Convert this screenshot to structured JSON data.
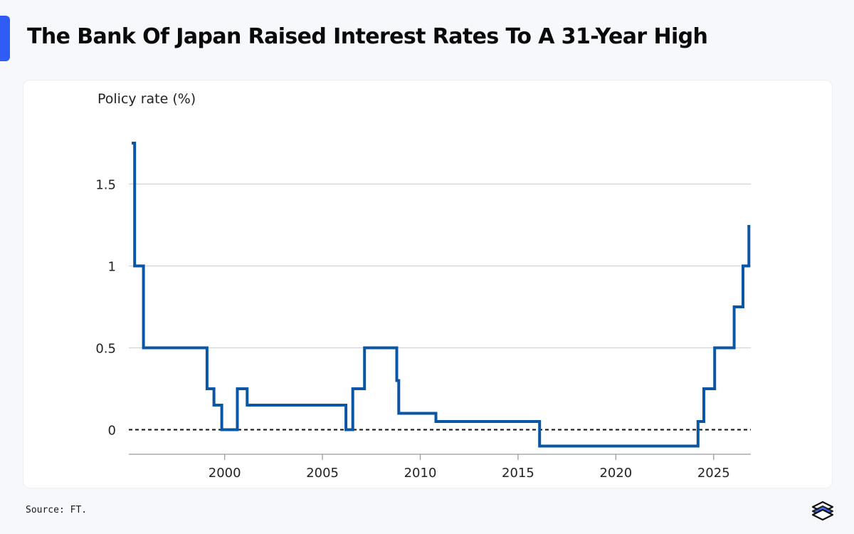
{
  "title": "The Bank Of Japan Raised Interest Rates To A 31-Year High",
  "source": "Source: FT.",
  "logo_icon": "stacked-layers-logo-icon",
  "colors": {
    "accent": "#2f5cf5",
    "line": "#0b56a4",
    "grid": "#d0d2d8",
    "text": "#222222"
  },
  "chart_data": {
    "type": "line",
    "step": true,
    "ylabel": "Policy rate (%)",
    "xlabel": "",
    "xlim": [
      1995.1,
      2026.9
    ],
    "ylim": [
      -0.15,
      1.85
    ],
    "yticks": [
      0,
      0.5,
      1,
      1.5
    ],
    "ytick_labels": [
      "0",
      "0.5",
      "1",
      "1.5"
    ],
    "xticks": [
      2000,
      2005,
      2010,
      2015,
      2020,
      2025
    ],
    "xtick_labels": [
      "2000",
      "2005",
      "2010",
      "2015",
      "2020",
      "2025"
    ],
    "grid": true,
    "zero_line": "dashed",
    "series": [
      {
        "x": [
          1995.25,
          1995.4,
          1995.85,
          1999.1,
          1999.45,
          1999.85,
          2000.65,
          2001.15,
          2006.2,
          2006.55,
          2007.15,
          2008.8,
          2008.9,
          2010.8,
          2016.1,
          2024.2,
          2024.5,
          2025.05,
          2026.05,
          2026.5,
          2026.8
        ],
        "y": [
          1.75,
          1.0,
          0.5,
          0.25,
          0.15,
          0.0,
          0.25,
          0.15,
          0.0,
          0.25,
          0.5,
          0.3,
          0.1,
          0.05,
          -0.1,
          0.05,
          0.25,
          0.5,
          0.75,
          1.0,
          1.25
        ]
      }
    ]
  }
}
